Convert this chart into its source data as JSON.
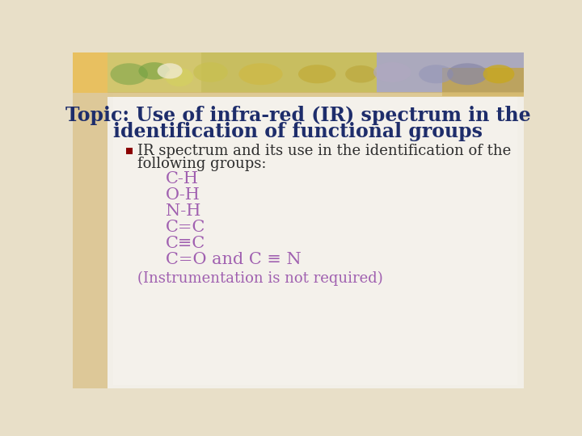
{
  "title_line1": "Topic: Use of infra-red (IR) spectrum in the",
  "title_line2": "identification of functional groups",
  "title_color": "#1e2d6b",
  "bullet_color": "#8b0000",
  "body_text_color": "#2d2d2d",
  "purple_color": "#a060b0",
  "body_line1": "IR spectrum and its use in the identification of the",
  "body_line2": "following groups:",
  "groups": [
    "C-H",
    "O-H",
    "N-H",
    "C=C",
    "C≡C"
  ],
  "last_line": "C=O and C ≡ N",
  "instrumentation": "(Instrumentation is not required)",
  "bg_outer": "#e8dfc8",
  "bg_inner": "#f0ede6",
  "bg_content": "#eeeae0",
  "title_fontsize": 17,
  "body_fontsize": 13,
  "group_fontsize": 15,
  "instrumentation_fontsize": 13,
  "banner_left_color": "#e8c870",
  "banner_mid_color": "#d4c870",
  "banner_right_color": "#b0b8d0",
  "left_margin_color": "#e0c898",
  "left_bar_color": "#e8c870"
}
